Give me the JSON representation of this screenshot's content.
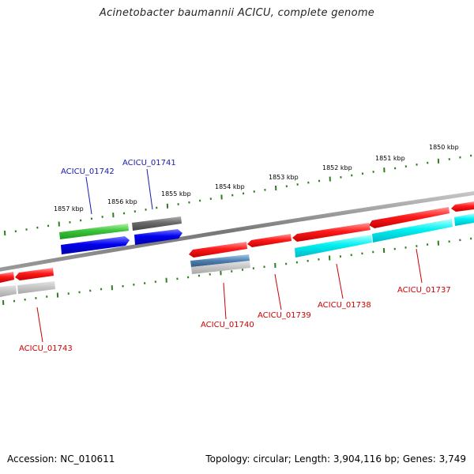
{
  "title": "Acinetobacter baumannii ACICU, complete genome",
  "footer": {
    "accession": "Accession: NC_010611",
    "topology": "Topology: circular; Length: 3,904,116 bp; Genes: 3,749"
  },
  "colors": {
    "backbone": "#8a8a8a",
    "ruler_tick": "#2e7d1e",
    "label_forward": "#1a1ab0",
    "label_reverse": "#cc0000"
  },
  "ruler_outer_labels": [
    "1850 kbp",
    "1851 kbp",
    "1852 kbp",
    "1853 kbp",
    "1854 kbp",
    "1855 kbp",
    "1856 kbp",
    "1857 kbp"
  ],
  "gene_labels": {
    "forward": [
      "ACICU_01741",
      "ACICU_01742"
    ],
    "reverse": [
      "ACICU_01737",
      "ACICU_01738",
      "ACICU_01739",
      "ACICU_01740",
      "ACICU_01743"
    ]
  }
}
